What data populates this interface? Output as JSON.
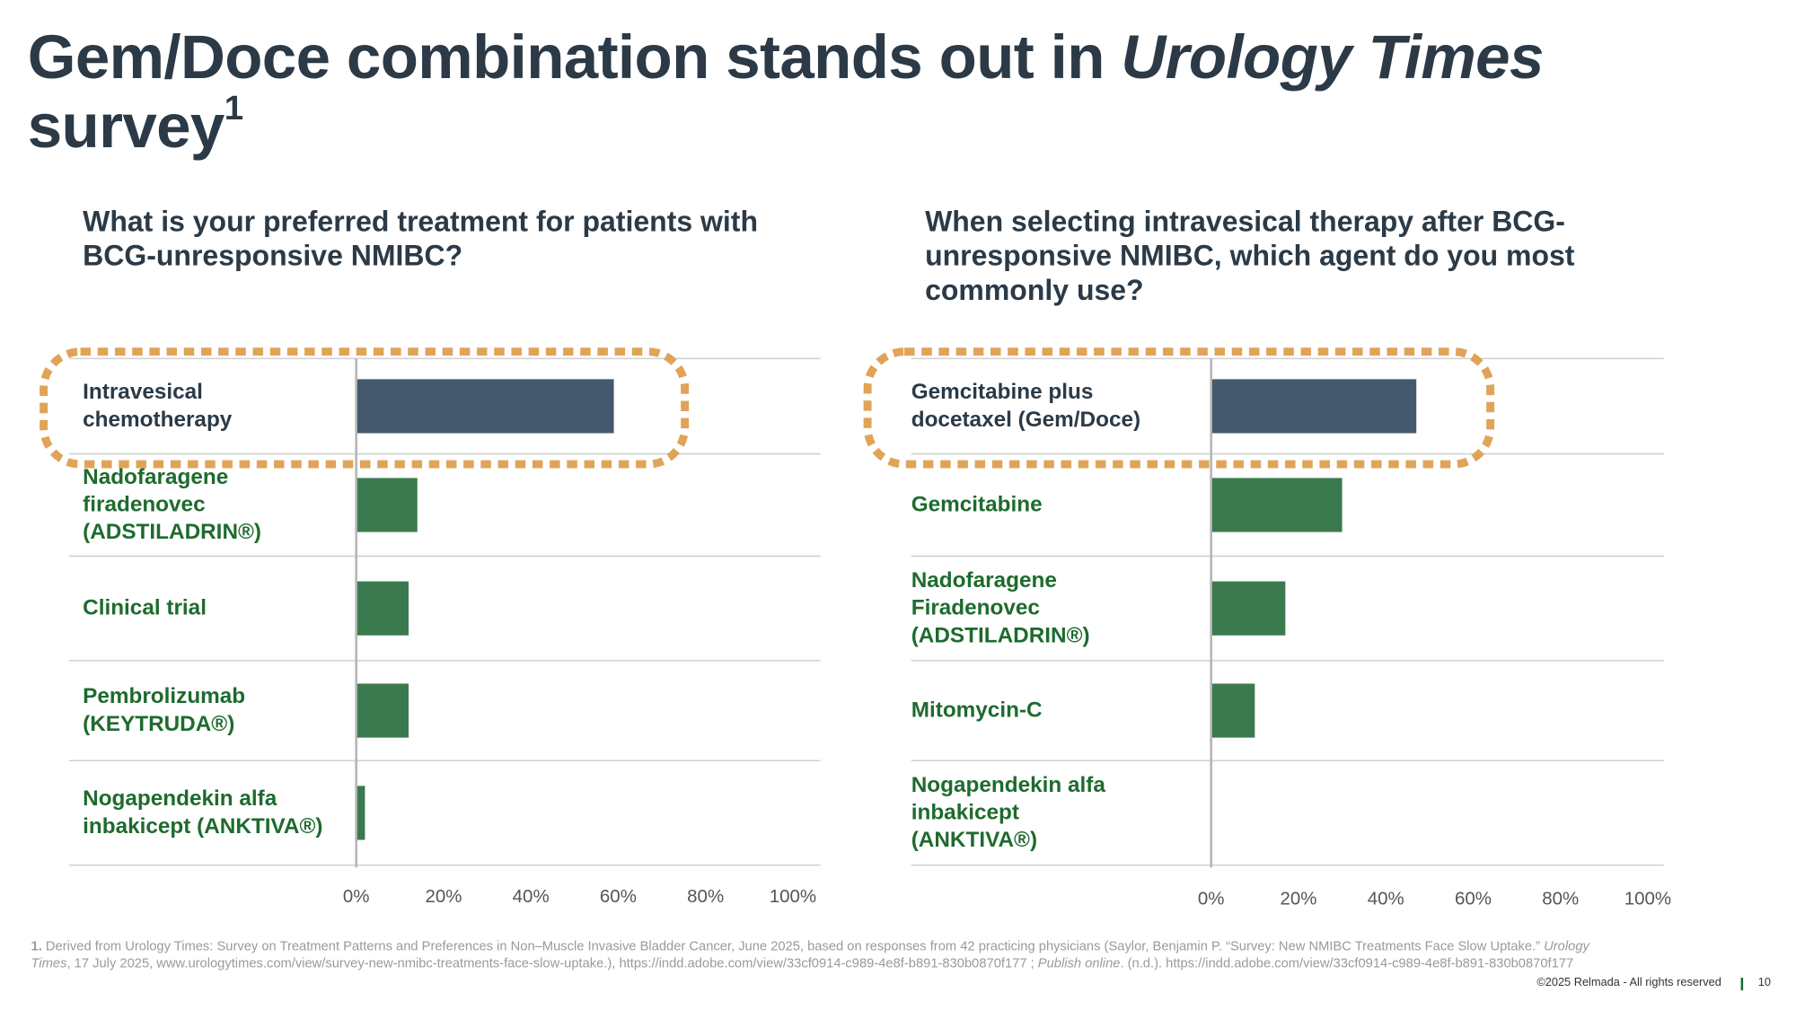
{
  "header": {
    "title_start": "Gem/Doce combination stands out in ",
    "title_italic": "Urology Times",
    "title_end": " survey",
    "title_sup": "1"
  },
  "chart_data": [
    {
      "type": "bar",
      "orientation": "horizontal",
      "title": "What is your preferred treatment for patients with BCG-unresponsive NMIBC?",
      "categories": [
        "Intravesical\nchemotherapy",
        "Nadofaragene\nfiradenovec\n(ADSTILADRIN®)",
        "Clinical trial",
        "Pembrolizumab\n(KEYTRUDA®)",
        "Nogapendekin alfa\ninbakicept (ANKTIVA®)"
      ],
      "values": [
        59,
        14,
        12,
        12,
        2
      ],
      "colors": [
        "#44596b",
        "#3b7a4e",
        "#3b7a4e",
        "#3b7a4e",
        "#3b7a4e"
      ],
      "label_colors": [
        "#2b3a46",
        "#1e6b2e",
        "#1e6b2e",
        "#1e6b2e",
        "#1e6b2e"
      ],
      "xlim": [
        0,
        100
      ],
      "xticks": [
        {
          "value": 0,
          "label": "0%"
        },
        {
          "value": 20,
          "label": "20%"
        },
        {
          "value": 40,
          "label": "40%"
        },
        {
          "value": 60,
          "label": "60%"
        },
        {
          "value": 80,
          "label": "80%"
        },
        {
          "value": 100,
          "label": "100%"
        }
      ]
    },
    {
      "type": "bar",
      "orientation": "horizontal",
      "title": "When selecting intravesical therapy after BCG-unresponsive NMIBC, which agent do you most commonly use?",
      "categories": [
        "Gemcitabine plus\ndocetaxel (Gem/Doce)",
        "Gemcitabine",
        "Nadofaragene\nFiradenovec\n(ADSTILADRIN®)",
        "Mitomycin-C",
        "Nogapendekin alfa\ninbakicept\n(ANKTIVA®)"
      ],
      "values": [
        47,
        30,
        17,
        10,
        0
      ],
      "colors": [
        "#44596b",
        "#3b7a4e",
        "#3b7a4e",
        "#3b7a4e",
        "#3b7a4e"
      ],
      "label_colors": [
        "#2b3a46",
        "#1e6b2e",
        "#1e6b2e",
        "#1e6b2e",
        "#1e6b2e"
      ],
      "xlim": [
        0,
        100
      ],
      "xticks": [
        {
          "value": 0,
          "label": "0%"
        },
        {
          "value": 20,
          "label": "20%"
        },
        {
          "value": 40,
          "label": "40%"
        },
        {
          "value": 60,
          "label": "60%"
        },
        {
          "value": 80,
          "label": "80%"
        },
        {
          "value": 100,
          "label": "100%"
        }
      ]
    }
  ],
  "footnote": {
    "marker": "1.",
    "parts": [
      "Derived from Urology Times: Survey on Treatment Patterns and Preferences in Non–Muscle Invasive Bladder Cancer, June 2025, based on responses from 42 practicing physicians (Saylor, Benjamin P. “Survey: New NMIBC Treatments Face Slow Uptake.” ",
      "Urology Times",
      ", 17 July 2025, www.urologytimes.com/view/survey-new-nmibc-treatments-face-slow-uptake.), https://indd.adobe.com/view/33cf0914-c989-4e8f-b891-830b0870f177 ; ",
      "Publish online",
      ". (n.d.). https://indd.adobe.com/view/33cf0914-c989-4e8f-b891-830b0870f177"
    ]
  },
  "footer": {
    "copyright": "©2025 Relmada - All rights reserved",
    "page": "10"
  }
}
